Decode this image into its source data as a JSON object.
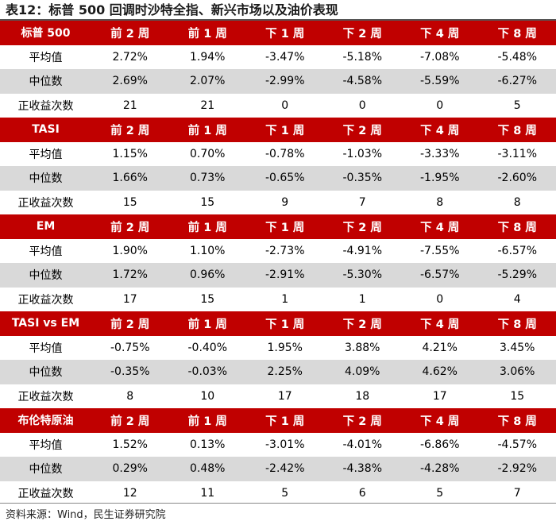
{
  "title": "表12：标普 500 回调时沙特全指、新兴市场以及油价表现",
  "columns": [
    "前 2 周",
    "前 1 周",
    "下 1 周",
    "下 2 周",
    "下 4 周",
    "下 8 周"
  ],
  "row_labels": [
    "平均值",
    "中位数",
    "正收益次数"
  ],
  "blocks": [
    {
      "name": "标普 500",
      "rows": [
        [
          "2.72%",
          "1.94%",
          "-3.47%",
          "-5.18%",
          "-7.08%",
          "-5.48%"
        ],
        [
          "2.69%",
          "2.07%",
          "-2.99%",
          "-4.58%",
          "-5.59%",
          "-6.27%"
        ],
        [
          "21",
          "21",
          "0",
          "0",
          "0",
          "5"
        ]
      ]
    },
    {
      "name": "TASI",
      "rows": [
        [
          "1.15%",
          "0.70%",
          "-0.78%",
          "-1.03%",
          "-3.33%",
          "-3.11%"
        ],
        [
          "1.66%",
          "0.73%",
          "-0.65%",
          "-0.35%",
          "-1.95%",
          "-2.60%"
        ],
        [
          "15",
          "15",
          "9",
          "7",
          "8",
          "8"
        ]
      ]
    },
    {
      "name": "EM",
      "rows": [
        [
          "1.90%",
          "1.10%",
          "-2.73%",
          "-4.91%",
          "-7.55%",
          "-6.57%"
        ],
        [
          "1.72%",
          "0.96%",
          "-2.91%",
          "-5.30%",
          "-6.57%",
          "-5.29%"
        ],
        [
          "17",
          "15",
          "1",
          "1",
          "0",
          "4"
        ]
      ]
    },
    {
      "name": "TASI vs EM",
      "rows": [
        [
          "-0.75%",
          "-0.40%",
          "1.95%",
          "3.88%",
          "4.21%",
          "3.45%"
        ],
        [
          "-0.35%",
          "-0.03%",
          "2.25%",
          "4.09%",
          "4.62%",
          "3.06%"
        ],
        [
          "8",
          "10",
          "17",
          "18",
          "17",
          "15"
        ]
      ]
    },
    {
      "name": "布伦特原油",
      "rows": [
        [
          "1.52%",
          "0.13%",
          "-3.01%",
          "-4.01%",
          "-6.86%",
          "-4.57%"
        ],
        [
          "0.29%",
          "0.48%",
          "-2.42%",
          "-4.38%",
          "-4.28%",
          "-2.92%"
        ],
        [
          "12",
          "11",
          "5",
          "6",
          "5",
          "7"
        ]
      ]
    }
  ],
  "source": "资料来源：Wind，民生证券研究院",
  "colors": {
    "header_bg": "#c00000",
    "header_text": "#ffffff",
    "stripe": "#d9d9d9"
  }
}
